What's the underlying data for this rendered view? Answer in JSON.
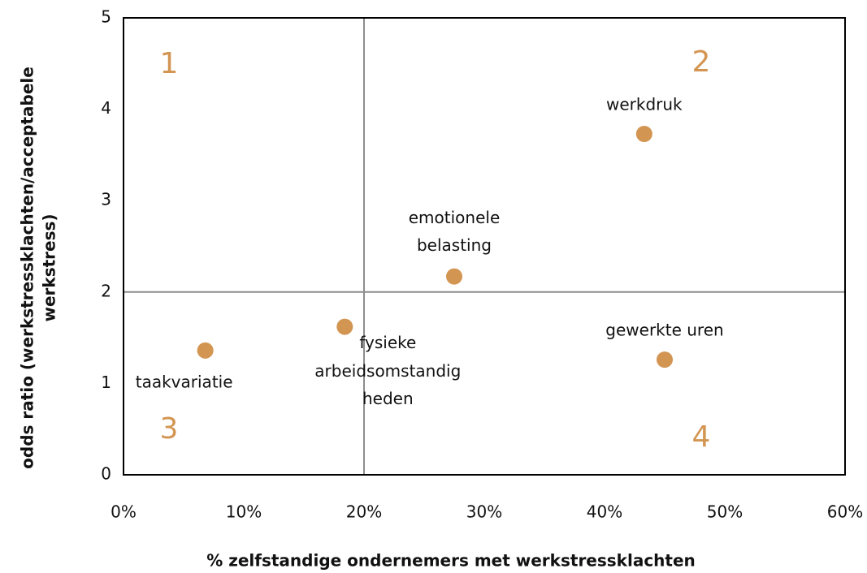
{
  "chart_data": {
    "type": "scatter",
    "x_label": "% zelfstandige ondernemers met werkstressklachten",
    "y_label": [
      "odds ratio (werkstressklachten/acceptabele",
      "werkstress)"
    ],
    "x": [
      6.8,
      18.4,
      27.5,
      43.3,
      45.0
    ],
    "series": [
      {
        "color": "#d39552",
        "values": [
          1.36,
          1.62,
          2.17,
          3.73,
          1.26
        ]
      }
    ],
    "point_labels": [
      [
        "taakvariatie"
      ],
      [
        "fysieke",
        "arbeidsomstandig",
        "heden"
      ],
      [
        "emotionele",
        "belasting"
      ],
      [
        "werkdruk"
      ],
      [
        "gewerkte uren"
      ]
    ],
    "reference_lines": {
      "x": 20,
      "y": 2
    },
    "quadrant_labels": [
      "1",
      "2",
      "3",
      "4"
    ],
    "xlim": [
      0,
      60
    ],
    "xticks": [
      {
        "value": 0,
        "label": "0%"
      },
      {
        "value": 10,
        "label": "10%"
      },
      {
        "value": 20,
        "label": "20%"
      },
      {
        "value": 30,
        "label": "30%"
      },
      {
        "value": 40,
        "label": "40%"
      },
      {
        "value": 50,
        "label": "50%"
      },
      {
        "value": 60,
        "label": "60%"
      }
    ],
    "ylim": [
      0,
      5
    ],
    "yticks": [
      0,
      1,
      2,
      3,
      4,
      5
    ]
  }
}
